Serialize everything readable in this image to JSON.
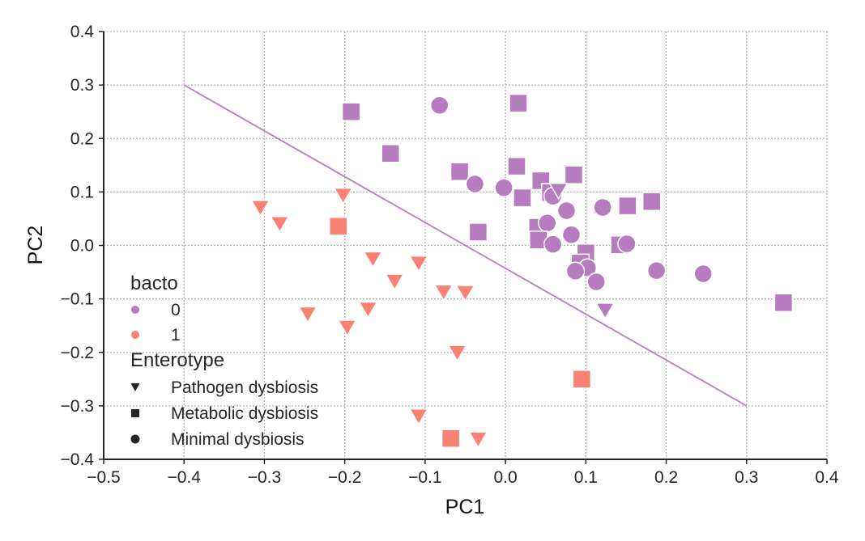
{
  "chart_data": {
    "type": "scatter",
    "xlabel": "PC1",
    "ylabel": "PC2",
    "xlim": [
      -0.5,
      0.4
    ],
    "ylim": [
      -0.4,
      0.4
    ],
    "x_ticks": [
      -0.5,
      -0.4,
      -0.3,
      -0.2,
      -0.1,
      0.0,
      0.1,
      0.2,
      0.3,
      0.4
    ],
    "y_ticks": [
      -0.4,
      -0.3,
      -0.2,
      -0.1,
      0.0,
      0.1,
      0.2,
      0.3,
      0.4
    ],
    "x_tick_labels": [
      "−0.5",
      "−0.4",
      "−0.3",
      "−0.2",
      "−0.1",
      "0.0",
      "0.1",
      "0.2",
      "0.3",
      "0.4"
    ],
    "y_tick_labels": [
      "−0.4",
      "−0.3",
      "−0.2",
      "−0.1",
      "0.0",
      "0.1",
      "0.2",
      "0.3",
      "0.4"
    ],
    "grid": true,
    "colors": {
      "0": "#b67cbf",
      "1": "#f98274"
    },
    "line": {
      "x": [
        -0.4,
        0.3
      ],
      "y": [
        0.3,
        -0.3
      ],
      "color": "#b67cbf"
    },
    "legend": {
      "position": "lower-left",
      "hue_title": "bacto",
      "hue_entries": [
        {
          "label": "0",
          "key": "0"
        },
        {
          "label": "1",
          "key": "1"
        }
      ],
      "style_title": "Enterotype",
      "style_entries": [
        {
          "label": "Pathogen dysbiosis",
          "marker": "triangle-down"
        },
        {
          "label": "Metabolic dysbiosis",
          "marker": "square"
        },
        {
          "label": "Minimal dysbiosis",
          "marker": "circle"
        }
      ]
    },
    "points": [
      {
        "x": -0.082,
        "y": 0.262,
        "hue": "0",
        "marker": "circle"
      },
      {
        "x": 0.016,
        "y": 0.266,
        "hue": "0",
        "marker": "square"
      },
      {
        "x": -0.192,
        "y": 0.25,
        "hue": "0",
        "marker": "square"
      },
      {
        "x": -0.143,
        "y": 0.172,
        "hue": "0",
        "marker": "square"
      },
      {
        "x": -0.057,
        "y": 0.138,
        "hue": "0",
        "marker": "square"
      },
      {
        "x": 0.014,
        "y": 0.148,
        "hue": "0",
        "marker": "square"
      },
      {
        "x": 0.085,
        "y": 0.132,
        "hue": "0",
        "marker": "square"
      },
      {
        "x": 0.044,
        "y": 0.121,
        "hue": "0",
        "marker": "square"
      },
      {
        "x": -0.038,
        "y": 0.115,
        "hue": "0",
        "marker": "circle"
      },
      {
        "x": -0.002,
        "y": 0.108,
        "hue": "0",
        "marker": "circle"
      },
      {
        "x": 0.021,
        "y": 0.089,
        "hue": "0",
        "marker": "square"
      },
      {
        "x": 0.056,
        "y": 0.099,
        "hue": "0",
        "marker": "square"
      },
      {
        "x": 0.059,
        "y": 0.092,
        "hue": "0",
        "marker": "circle"
      },
      {
        "x": 0.066,
        "y": 0.104,
        "hue": "0",
        "marker": "triangle-down"
      },
      {
        "x": 0.121,
        "y": 0.071,
        "hue": "0",
        "marker": "circle"
      },
      {
        "x": 0.152,
        "y": 0.074,
        "hue": "0",
        "marker": "square"
      },
      {
        "x": 0.182,
        "y": 0.082,
        "hue": "0",
        "marker": "square"
      },
      {
        "x": 0.076,
        "y": 0.065,
        "hue": "0",
        "marker": "circle"
      },
      {
        "x": -0.034,
        "y": 0.025,
        "hue": "0",
        "marker": "square"
      },
      {
        "x": 0.04,
        "y": 0.034,
        "hue": "0",
        "marker": "square"
      },
      {
        "x": 0.052,
        "y": 0.042,
        "hue": "0",
        "marker": "circle"
      },
      {
        "x": 0.041,
        "y": 0.01,
        "hue": "0",
        "marker": "square"
      },
      {
        "x": 0.059,
        "y": 0.002,
        "hue": "0",
        "marker": "circle"
      },
      {
        "x": 0.082,
        "y": 0.02,
        "hue": "0",
        "marker": "circle"
      },
      {
        "x": 0.142,
        "y": 0.001,
        "hue": "0",
        "marker": "square"
      },
      {
        "x": 0.151,
        "y": 0.003,
        "hue": "0",
        "marker": "circle"
      },
      {
        "x": 0.1,
        "y": -0.014,
        "hue": "0",
        "marker": "square"
      },
      {
        "x": 0.093,
        "y": -0.033,
        "hue": "0",
        "marker": "square"
      },
      {
        "x": 0.102,
        "y": -0.042,
        "hue": "0",
        "marker": "circle"
      },
      {
        "x": 0.087,
        "y": -0.048,
        "hue": "0",
        "marker": "circle"
      },
      {
        "x": 0.113,
        "y": -0.068,
        "hue": "0",
        "marker": "circle"
      },
      {
        "x": 0.188,
        "y": -0.047,
        "hue": "0",
        "marker": "circle"
      },
      {
        "x": 0.246,
        "y": -0.053,
        "hue": "0",
        "marker": "circle"
      },
      {
        "x": 0.346,
        "y": -0.107,
        "hue": "0",
        "marker": "square"
      },
      {
        "x": 0.124,
        "y": -0.12,
        "hue": "0",
        "marker": "triangle-down"
      },
      {
        "x": -0.305,
        "y": 0.072,
        "hue": "1",
        "marker": "triangle-down"
      },
      {
        "x": -0.281,
        "y": 0.042,
        "hue": "1",
        "marker": "triangle-down"
      },
      {
        "x": -0.202,
        "y": 0.095,
        "hue": "1",
        "marker": "triangle-down"
      },
      {
        "x": -0.208,
        "y": 0.036,
        "hue": "1",
        "marker": "square"
      },
      {
        "x": -0.165,
        "y": -0.024,
        "hue": "1",
        "marker": "triangle-down"
      },
      {
        "x": -0.108,
        "y": -0.032,
        "hue": "1",
        "marker": "triangle-down"
      },
      {
        "x": -0.138,
        "y": -0.066,
        "hue": "1",
        "marker": "triangle-down"
      },
      {
        "x": -0.077,
        "y": -0.086,
        "hue": "1",
        "marker": "triangle-down"
      },
      {
        "x": -0.05,
        "y": -0.087,
        "hue": "1",
        "marker": "triangle-down"
      },
      {
        "x": -0.246,
        "y": -0.127,
        "hue": "1",
        "marker": "triangle-down"
      },
      {
        "x": -0.171,
        "y": -0.118,
        "hue": "1",
        "marker": "triangle-down"
      },
      {
        "x": -0.197,
        "y": -0.152,
        "hue": "1",
        "marker": "triangle-down"
      },
      {
        "x": -0.06,
        "y": -0.199,
        "hue": "1",
        "marker": "triangle-down"
      },
      {
        "x": 0.095,
        "y": -0.25,
        "hue": "1",
        "marker": "square"
      },
      {
        "x": -0.108,
        "y": -0.318,
        "hue": "1",
        "marker": "triangle-down"
      },
      {
        "x": -0.068,
        "y": -0.361,
        "hue": "1",
        "marker": "square"
      },
      {
        "x": -0.034,
        "y": -0.361,
        "hue": "1",
        "marker": "triangle-down"
      }
    ]
  }
}
